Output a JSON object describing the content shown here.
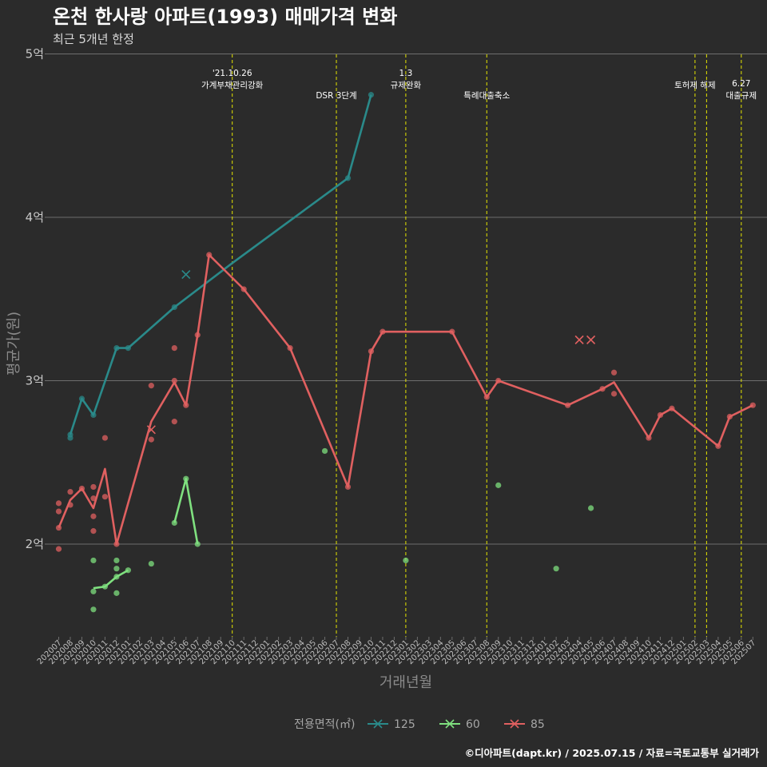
{
  "title": "온천 한사랑 아파트(1993) 매매가격 변화",
  "subtitle": "최근 5개년 한정",
  "caption": "©디아파트(dapt.kr) / 2025.07.15 / 자료=국토교통부 실거래가",
  "colors": {
    "background": "#2b2b2b",
    "grid": "#6e6e6e",
    "event_line": "#e5e500",
    "s125": "#2a8a8a",
    "s60": "#7fe07f",
    "s85": "#e06060"
  },
  "chart_data": {
    "type": "line",
    "xlabel": "거래년월",
    "ylabel": "평균가(원)",
    "y_ticks": [
      {
        "value": 2,
        "label": "2억"
      },
      {
        "value": 3,
        "label": "3억"
      },
      {
        "value": 4,
        "label": "4억"
      },
      {
        "value": 5,
        "label": "5억"
      }
    ],
    "ylim": [
      1.45,
      5.05
    ],
    "x_categories": [
      "202007",
      "202008",
      "202009",
      "202010",
      "202011",
      "202012",
      "202101",
      "202102",
      "202103",
      "202104",
      "202105",
      "202106",
      "202107",
      "202108",
      "202109",
      "202110",
      "202111",
      "202112",
      "202201",
      "202202",
      "202203",
      "202204",
      "202205",
      "202206",
      "202207",
      "202208",
      "202209",
      "202210",
      "202211",
      "202212",
      "202301",
      "202302",
      "202303",
      "202304",
      "202305",
      "202306",
      "202307",
      "202308",
      "202309",
      "202310",
      "202311",
      "202312",
      "202401",
      "202402",
      "202403",
      "202404",
      "202405",
      "202406",
      "202407",
      "202408",
      "202409",
      "202410",
      "202411",
      "202412",
      "202501",
      "202502",
      "202503",
      "202504",
      "202505",
      "202506",
      "202507"
    ],
    "legend_title": "전용면적(㎡)",
    "events": [
      {
        "x": "202110",
        "label_lines": [
          "'21.10.26",
          "가계부채관리강화"
        ],
        "label_row": 0
      },
      {
        "x": "202207",
        "label_lines": [
          "DSR 3단계"
        ],
        "label_row": 1
      },
      {
        "x": "202301",
        "label_lines": [
          "1.3",
          "규제완화"
        ],
        "label_row": 0
      },
      {
        "x": "202308",
        "label_lines": [
          "특례대출축소"
        ],
        "label_row": 1
      },
      {
        "x": "202502",
        "label_lines": [
          "토허제 해제"
        ],
        "label_row": 0
      },
      {
        "x": "202503",
        "label_lines": [],
        "label_row": 0
      },
      {
        "x": "202506",
        "label_lines": [
          "6.27",
          "대출규제"
        ],
        "label_row": 1
      }
    ],
    "series": [
      {
        "name": "125",
        "color": "#2a8a8a",
        "line": [
          [
            "202008",
            2.67
          ],
          [
            "202009",
            2.89
          ],
          [
            "202010",
            2.79
          ],
          [
            "202012",
            3.2
          ],
          [
            "202101",
            3.2
          ],
          [
            "202105",
            3.45
          ],
          [
            "202110",
            3.72
          ],
          [
            "202208",
            4.24
          ],
          [
            "202210",
            4.75
          ]
        ],
        "points": [
          [
            "202008",
            2.67
          ],
          [
            "202008",
            2.65
          ],
          [
            "202009",
            2.89
          ],
          [
            "202010",
            2.79
          ],
          [
            "202012",
            3.2
          ],
          [
            "202101",
            3.2
          ],
          [
            "202105",
            3.45
          ],
          [
            "202208",
            4.24
          ],
          [
            "202210",
            4.75
          ]
        ],
        "cancelled": [
          [
            "202106",
            3.65
          ]
        ]
      },
      {
        "name": "60",
        "color": "#7fe07f",
        "line": [
          [
            "202010",
            1.73
          ],
          [
            "202011",
            1.74
          ],
          [
            "202012",
            1.8
          ],
          [
            "202101",
            1.84
          ]
        ],
        "line2": [
          [
            "202105",
            2.13
          ],
          [
            "202106",
            2.4
          ],
          [
            "202107",
            2.0
          ]
        ],
        "points": [
          [
            "202010",
            1.9
          ],
          [
            "202010",
            1.71
          ],
          [
            "202010",
            1.6
          ],
          [
            "202011",
            1.74
          ],
          [
            "202012",
            1.9
          ],
          [
            "202012",
            1.85
          ],
          [
            "202012",
            1.8
          ],
          [
            "202012",
            1.7
          ],
          [
            "202101",
            1.84
          ],
          [
            "202103",
            1.88
          ],
          [
            "202105",
            2.13
          ],
          [
            "202106",
            2.4
          ],
          [
            "202107",
            2.0
          ],
          [
            "202206",
            2.57
          ],
          [
            "202301",
            1.9
          ],
          [
            "202309",
            2.36
          ],
          [
            "202402",
            1.85
          ],
          [
            "202405",
            2.22
          ]
        ],
        "cancelled": []
      },
      {
        "name": "85",
        "color": "#e06060",
        "line": [
          [
            "202007",
            2.1
          ],
          [
            "202008",
            2.27
          ],
          [
            "202009",
            2.34
          ],
          [
            "202010",
            2.22
          ],
          [
            "202011",
            2.46
          ],
          [
            "202012",
            2.0
          ],
          [
            "202103",
            2.75
          ],
          [
            "202105",
            2.99
          ],
          [
            "202106",
            2.85
          ],
          [
            "202107",
            3.28
          ],
          [
            "202108",
            3.77
          ],
          [
            "202111",
            3.56
          ],
          [
            "202203",
            3.2
          ],
          [
            "202208",
            2.35
          ],
          [
            "202210",
            3.18
          ],
          [
            "202211",
            3.3
          ],
          [
            "202305",
            3.3
          ],
          [
            "202308",
            2.9
          ],
          [
            "202309",
            3.0
          ],
          [
            "202403",
            2.85
          ],
          [
            "202406",
            2.95
          ],
          [
            "202407",
            2.99
          ],
          [
            "202410",
            2.65
          ],
          [
            "202411",
            2.79
          ],
          [
            "202412",
            2.83
          ],
          [
            "202504",
            2.6
          ],
          [
            "202505",
            2.78
          ],
          [
            "202507",
            2.85
          ]
        ],
        "points": [
          [
            "202007",
            2.25
          ],
          [
            "202007",
            2.2
          ],
          [
            "202007",
            2.1
          ],
          [
            "202007",
            1.97
          ],
          [
            "202008",
            2.32
          ],
          [
            "202008",
            2.24
          ],
          [
            "202009",
            2.34
          ],
          [
            "202010",
            2.35
          ],
          [
            "202010",
            2.28
          ],
          [
            "202010",
            2.17
          ],
          [
            "202010",
            2.08
          ],
          [
            "202011",
            2.65
          ],
          [
            "202011",
            2.29
          ],
          [
            "202012",
            2.0
          ],
          [
            "202103",
            2.97
          ],
          [
            "202103",
            2.64
          ],
          [
            "202105",
            3.2
          ],
          [
            "202105",
            3.0
          ],
          [
            "202105",
            2.75
          ],
          [
            "202106",
            2.85
          ],
          [
            "202107",
            3.28
          ],
          [
            "202108",
            3.77
          ],
          [
            "202111",
            3.56
          ],
          [
            "202203",
            3.2
          ],
          [
            "202208",
            2.35
          ],
          [
            "202210",
            3.18
          ],
          [
            "202211",
            3.3
          ],
          [
            "202305",
            3.3
          ],
          [
            "202308",
            2.9
          ],
          [
            "202309",
            3.0
          ],
          [
            "202403",
            2.85
          ],
          [
            "202406",
            2.95
          ],
          [
            "202407",
            3.05
          ],
          [
            "202407",
            2.92
          ],
          [
            "202410",
            2.65
          ],
          [
            "202411",
            2.79
          ],
          [
            "202412",
            2.83
          ],
          [
            "202504",
            2.6
          ],
          [
            "202505",
            2.78
          ],
          [
            "202507",
            2.85
          ]
        ],
        "cancelled": [
          [
            "202103",
            2.7
          ],
          [
            "202404",
            3.25
          ],
          [
            "202405",
            3.25
          ]
        ]
      }
    ]
  }
}
